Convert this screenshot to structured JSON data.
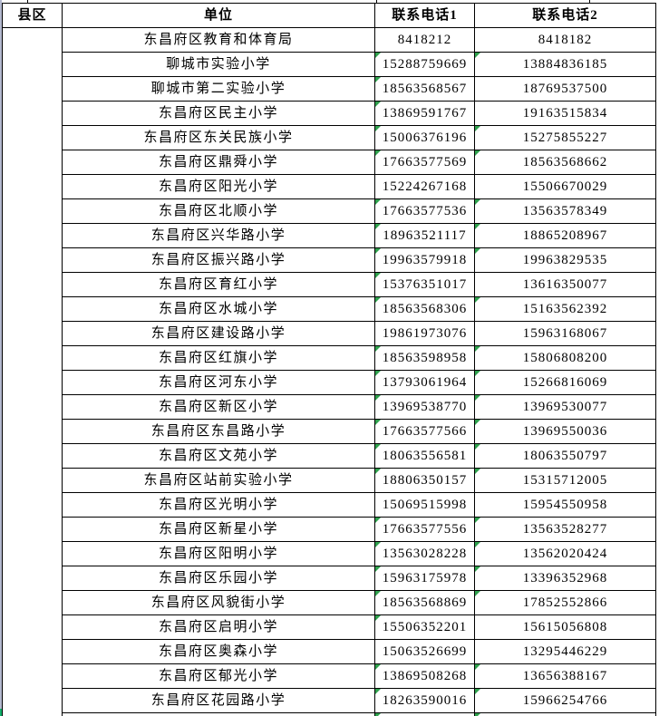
{
  "colors": {
    "error_triangle_green": "#2fa14d",
    "left_edge_strip": "#b4b9cf",
    "left_edge_green_tip": "#12af6b",
    "grid_border": "#000000"
  },
  "table": {
    "headers": {
      "county": "县区",
      "unit": "单位",
      "phone1": "联系电话1",
      "phone2": "联系电话2"
    },
    "county_cell_value": "",
    "rows": [
      {
        "unit": "东昌府区教育和体育局",
        "phone1": "8418212",
        "phone2": "8418182",
        "tri1": false,
        "tri2": false
      },
      {
        "unit": "聊城市实验小学",
        "phone1": "15288759669",
        "phone2": "13884836185",
        "tri1": true,
        "tri2": true
      },
      {
        "unit": "聊城市第二实验小学",
        "phone1": "18563568567",
        "phone2": "18769537500",
        "tri1": true,
        "tri2": false
      },
      {
        "unit": "东昌府区民主小学",
        "phone1": "13869591767",
        "phone2": "19163515834",
        "tri1": true,
        "tri2": false
      },
      {
        "unit": "东昌府区东关民族小学",
        "phone1": "15006376196",
        "phone2": "15275855227",
        "tri1": true,
        "tri2": true
      },
      {
        "unit": "东昌府区鼎舜小学",
        "phone1": "17663577569",
        "phone2": "18563568662",
        "tri1": true,
        "tri2": true
      },
      {
        "unit": "东昌府区阳光小学",
        "phone1": "15224267168",
        "phone2": "15506670029",
        "tri1": false,
        "tri2": false
      },
      {
        "unit": "东昌府区北顺小学",
        "phone1": "17663577536",
        "phone2": "13563578349",
        "tri1": true,
        "tri2": true
      },
      {
        "unit": "东昌府区兴华路小学",
        "phone1": "18963521117",
        "phone2": "18865208967",
        "tri1": true,
        "tri2": true
      },
      {
        "unit": "东昌府区振兴路小学",
        "phone1": "19963579918",
        "phone2": "19963829535",
        "tri1": true,
        "tri2": true
      },
      {
        "unit": "东昌府区育红小学",
        "phone1": "15376351017",
        "phone2": "13616350077",
        "tri1": true,
        "tri2": false
      },
      {
        "unit": "东昌府区水城小学",
        "phone1": "18563568306",
        "phone2": "15163562392",
        "tri1": true,
        "tri2": true
      },
      {
        "unit": "东昌府区建设路小学",
        "phone1": "19861973076",
        "phone2": "15963168067",
        "tri1": false,
        "tri2": false
      },
      {
        "unit": "东昌府区红旗小学",
        "phone1": "18563598958",
        "phone2": "15806808200",
        "tri1": true,
        "tri2": true
      },
      {
        "unit": "东昌府区河东小学",
        "phone1": "13793061964",
        "phone2": "15266816069",
        "tri1": true,
        "tri2": true
      },
      {
        "unit": "东昌府区新区小学",
        "phone1": "13969538770",
        "phone2": "13969530077",
        "tri1": true,
        "tri2": true
      },
      {
        "unit": "东昌府区东昌路小学",
        "phone1": "17663577566",
        "phone2": "13969550036",
        "tri1": true,
        "tri2": true
      },
      {
        "unit": "东昌府区文苑小学",
        "phone1": "18063556581",
        "phone2": "18063550797",
        "tri1": true,
        "tri2": true
      },
      {
        "unit": "东昌府区站前实验小学",
        "phone1": "18806350157",
        "phone2": "15315712005",
        "tri1": true,
        "tri2": true
      },
      {
        "unit": "东昌府区光明小学",
        "phone1": "15069515998",
        "phone2": "15954550958",
        "tri1": false,
        "tri2": false
      },
      {
        "unit": "东昌府区新星小学",
        "phone1": "17663577556",
        "phone2": "13563528277",
        "tri1": true,
        "tri2": true
      },
      {
        "unit": "东昌府区阳明小学",
        "phone1": "13563028228",
        "phone2": "13562020424",
        "tri1": true,
        "tri2": true
      },
      {
        "unit": "东昌府区乐园小学",
        "phone1": "15963175978",
        "phone2": "13396352968",
        "tri1": true,
        "tri2": true
      },
      {
        "unit": "东昌府区风貌街小学",
        "phone1": "18563568869",
        "phone2": "17852552866",
        "tri1": true,
        "tri2": true
      },
      {
        "unit": "东昌府区启明小学",
        "phone1": "15506352201",
        "phone2": "15615056808",
        "tri1": true,
        "tri2": false
      },
      {
        "unit": "东昌府区奥森小学",
        "phone1": "15063526699",
        "phone2": "13295446229",
        "tri1": false,
        "tri2": false
      },
      {
        "unit": "东昌府区郁光小学",
        "phone1": "13869508268",
        "phone2": "13656388167",
        "tri1": true,
        "tri2": true
      },
      {
        "unit": "东昌府区花园路小学",
        "phone1": "18263590016",
        "phone2": "15966254766",
        "tri1": true,
        "tri2": true
      }
    ],
    "partial_row": {
      "tri1": true,
      "tri2": true
    }
  }
}
